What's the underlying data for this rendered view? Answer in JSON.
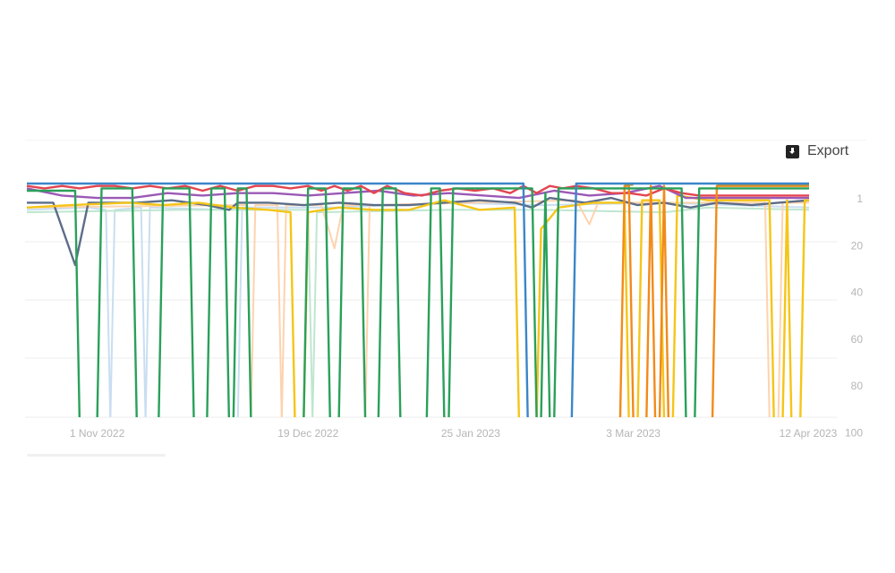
{
  "toolbar": {
    "export_label": "Export",
    "export_icon": "download-icon"
  },
  "chart_data": {
    "type": "line",
    "title": "",
    "xlabel": "",
    "ylabel": "",
    "y_reversed": true,
    "ylim": [
      1,
      100
    ],
    "grid": true,
    "y_axis_position": "right",
    "x_ticks": [
      "1 Nov 2022",
      "19 Dec 2022",
      "25 Jan 2023",
      "3 Mar 2023",
      "12 Apr 2023"
    ],
    "x_tick_dates": [
      "2022-11-01",
      "2022-12-19",
      "2023-01-25",
      "2023-03-03",
      "2023-04-12"
    ],
    "y_ticks": [
      1,
      20,
      40,
      60,
      80,
      100
    ],
    "xlim": [
      "2022-10-16",
      "2023-04-12"
    ],
    "series": [
      {
        "color": "#c9def1",
        "points": [
          [
            "2022-10-16",
            12
          ],
          [
            "2022-10-30",
            11
          ],
          [
            "2022-11-03",
            12
          ],
          [
            "2022-11-04",
            100
          ],
          [
            "2022-11-05",
            12
          ],
          [
            "2022-11-11",
            11
          ],
          [
            "2022-11-12",
            100
          ],
          [
            "2022-11-13",
            11
          ],
          [
            "2022-11-30",
            12
          ],
          [
            "2022-12-01",
            100
          ],
          [
            "2022-12-03",
            100
          ],
          [
            "2022-12-04",
            11
          ],
          [
            "2022-12-25",
            11
          ],
          [
            "2023-01-20",
            9
          ],
          [
            "2023-02-10",
            10
          ],
          [
            "2023-03-10",
            9
          ],
          [
            "2023-04-12",
            11
          ]
        ]
      },
      {
        "color": "#bfe6d0",
        "points": [
          [
            "2022-10-16",
            13
          ],
          [
            "2022-11-20",
            12
          ],
          [
            "2022-12-19",
            12
          ],
          [
            "2022-12-20",
            100
          ],
          [
            "2022-12-21",
            13
          ],
          [
            "2023-01-20",
            12
          ],
          [
            "2023-02-10",
            12
          ],
          [
            "2023-03-10",
            13
          ],
          [
            "2023-03-20",
            11
          ],
          [
            "2023-04-12",
            12
          ]
        ]
      },
      {
        "color": "#fdd3ae",
        "points": [
          [
            "2022-10-16",
            11
          ],
          [
            "2022-12-01",
            10
          ],
          [
            "2022-12-05",
            10
          ],
          [
            "2022-12-06",
            100
          ],
          [
            "2022-12-07",
            10
          ],
          [
            "2022-12-12",
            10
          ],
          [
            "2022-12-13",
            100
          ],
          [
            "2022-12-14",
            10
          ],
          [
            "2022-12-22",
            10
          ],
          [
            "2022-12-25",
            28
          ],
          [
            "2022-12-27",
            10
          ],
          [
            "2022-12-31",
            10
          ],
          [
            "2023-01-01",
            100
          ],
          [
            "2023-01-02",
            10
          ],
          [
            "2023-02-18",
            8
          ],
          [
            "2023-02-21",
            18
          ],
          [
            "2023-02-23",
            9
          ],
          [
            "2023-04-02",
            9
          ],
          [
            "2023-04-03",
            100
          ],
          [
            "2023-04-05",
            100
          ],
          [
            "2023-04-06",
            9
          ],
          [
            "2023-04-12",
            9
          ]
        ]
      },
      {
        "color": "#5d6d88",
        "points": [
          [
            "2022-10-16",
            9
          ],
          [
            "2022-10-22",
            9
          ],
          [
            "2022-10-27",
            35
          ],
          [
            "2022-10-30",
            9
          ],
          [
            "2022-11-10",
            9
          ],
          [
            "2022-11-18",
            8
          ],
          [
            "2022-11-26",
            10
          ],
          [
            "2022-12-01",
            12
          ],
          [
            "2022-12-03",
            9
          ],
          [
            "2022-12-10",
            9
          ],
          [
            "2022-12-18",
            10
          ],
          [
            "2022-12-26",
            9
          ],
          [
            "2023-01-03",
            10
          ],
          [
            "2023-01-11",
            10
          ],
          [
            "2023-01-19",
            9
          ],
          [
            "2023-01-27",
            8
          ],
          [
            "2023-02-04",
            9
          ],
          [
            "2023-02-08",
            11
          ],
          [
            "2023-02-12",
            7
          ],
          [
            "2023-02-20",
            9
          ],
          [
            "2023-02-26",
            7
          ],
          [
            "2023-03-04",
            10
          ],
          [
            "2023-03-10",
            9
          ],
          [
            "2023-03-16",
            11
          ],
          [
            "2023-03-22",
            9
          ],
          [
            "2023-03-30",
            10
          ],
          [
            "2023-04-05",
            9
          ],
          [
            "2023-04-12",
            8
          ]
        ]
      },
      {
        "color": "#f5c518",
        "points": [
          [
            "2022-10-16",
            11
          ],
          [
            "2022-10-26",
            10
          ],
          [
            "2022-11-08",
            9
          ],
          [
            "2022-11-16",
            10
          ],
          [
            "2022-11-24",
            9
          ],
          [
            "2022-12-02",
            11
          ],
          [
            "2022-12-10",
            12
          ],
          [
            "2022-12-15",
            13
          ],
          [
            "2022-12-16",
            100
          ],
          [
            "2022-12-18",
            100
          ],
          [
            "2022-12-19",
            13
          ],
          [
            "2022-12-26",
            11
          ],
          [
            "2023-01-03",
            12
          ],
          [
            "2023-01-11",
            12
          ],
          [
            "2023-01-19",
            8
          ],
          [
            "2023-01-27",
            12
          ],
          [
            "2023-02-04",
            11
          ],
          [
            "2023-02-05",
            100
          ],
          [
            "2023-02-09",
            100
          ],
          [
            "2023-02-10",
            20
          ],
          [
            "2023-02-14",
            11
          ],
          [
            "2023-02-22",
            9
          ],
          [
            "2023-03-01",
            9
          ],
          [
            "2023-03-02",
            100
          ],
          [
            "2023-03-04",
            100
          ],
          [
            "2023-03-05",
            8
          ],
          [
            "2023-03-09",
            8
          ],
          [
            "2023-03-10",
            100
          ],
          [
            "2023-03-12",
            100
          ],
          [
            "2023-03-13",
            6
          ],
          [
            "2023-03-20",
            8
          ],
          [
            "2023-04-03",
            8
          ],
          [
            "2023-04-04",
            100
          ],
          [
            "2023-04-06",
            100
          ],
          [
            "2023-04-07",
            8
          ],
          [
            "2023-04-08",
            100
          ],
          [
            "2023-04-10",
            100
          ],
          [
            "2023-04-11",
            8
          ],
          [
            "2023-04-12",
            8
          ]
        ]
      },
      {
        "color": "#9b59b6",
        "points": [
          [
            "2022-10-16",
            3
          ],
          [
            "2022-10-24",
            6
          ],
          [
            "2022-11-01",
            7
          ],
          [
            "2022-11-09",
            7
          ],
          [
            "2022-11-17",
            5
          ],
          [
            "2022-11-25",
            6
          ],
          [
            "2022-12-03",
            5
          ],
          [
            "2022-12-11",
            5
          ],
          [
            "2022-12-19",
            6
          ],
          [
            "2022-12-27",
            5
          ],
          [
            "2023-01-04",
            4
          ],
          [
            "2023-01-12",
            6
          ],
          [
            "2023-01-20",
            5
          ],
          [
            "2023-01-28",
            6
          ],
          [
            "2023-02-05",
            7
          ],
          [
            "2023-02-13",
            4
          ],
          [
            "2023-02-21",
            6
          ],
          [
            "2023-03-01",
            5
          ],
          [
            "2023-03-09",
            2
          ],
          [
            "2023-03-15",
            7
          ],
          [
            "2023-03-25",
            7
          ],
          [
            "2023-04-12",
            7
          ]
        ]
      },
      {
        "color": "#e34550",
        "points": [
          [
            "2022-10-16",
            2
          ],
          [
            "2022-10-20",
            3
          ],
          [
            "2022-10-24",
            2
          ],
          [
            "2022-10-28",
            3
          ],
          [
            "2022-11-01",
            2
          ],
          [
            "2022-11-05",
            2
          ],
          [
            "2022-11-09",
            3
          ],
          [
            "2022-11-13",
            2
          ],
          [
            "2022-11-17",
            3
          ],
          [
            "2022-11-21",
            2
          ],
          [
            "2022-11-25",
            4
          ],
          [
            "2022-11-29",
            2
          ],
          [
            "2022-12-03",
            4
          ],
          [
            "2022-12-07",
            2
          ],
          [
            "2022-12-11",
            2
          ],
          [
            "2022-12-15",
            3
          ],
          [
            "2022-12-19",
            2
          ],
          [
            "2022-12-22",
            4
          ],
          [
            "2022-12-25",
            2
          ],
          [
            "2022-12-28",
            4
          ],
          [
            "2022-12-31",
            2
          ],
          [
            "2023-01-03",
            5
          ],
          [
            "2023-01-06",
            2
          ],
          [
            "2023-01-10",
            5
          ],
          [
            "2023-01-14",
            6
          ],
          [
            "2023-01-18",
            4
          ],
          [
            "2023-01-22",
            3
          ],
          [
            "2023-01-26",
            4
          ],
          [
            "2023-01-30",
            3
          ],
          [
            "2023-02-03",
            5
          ],
          [
            "2023-02-06",
            2
          ],
          [
            "2023-02-09",
            5
          ],
          [
            "2023-02-12",
            2
          ],
          [
            "2023-02-15",
            3
          ],
          [
            "2023-02-18",
            2
          ],
          [
            "2023-02-22",
            3
          ],
          [
            "2023-02-26",
            5
          ],
          [
            "2023-03-02",
            5
          ],
          [
            "2023-03-06",
            6
          ],
          [
            "2023-03-10",
            3
          ],
          [
            "2023-03-14",
            5
          ],
          [
            "2023-03-18",
            6
          ],
          [
            "2023-03-25",
            6
          ],
          [
            "2023-04-01",
            6
          ],
          [
            "2023-04-12",
            6
          ]
        ]
      },
      {
        "color": "#f28a1a",
        "points": [
          [
            "2022-10-16",
            100
          ],
          [
            "2023-02-28",
            100
          ],
          [
            "2023-03-01",
            2
          ],
          [
            "2023-03-02",
            2
          ],
          [
            "2023-03-03",
            100
          ],
          [
            "2023-03-06",
            100
          ],
          [
            "2023-03-07",
            2
          ],
          [
            "2023-03-08",
            100
          ],
          [
            "2023-03-09",
            100
          ],
          [
            "2023-03-10",
            2
          ],
          [
            "2023-03-11",
            100
          ],
          [
            "2023-03-21",
            100
          ],
          [
            "2023-03-22",
            2
          ],
          [
            "2023-04-12",
            2
          ]
        ]
      },
      {
        "color": "#b8913a",
        "points": [
          [
            "2023-03-01",
            1.5
          ],
          [
            "2023-03-03",
            1.5
          ],
          [
            "2023-03-22",
            null
          ],
          [
            "2023-03-22",
            1.5
          ],
          [
            "2023-04-12",
            1.5
          ]
        ]
      },
      {
        "color": "#2aa05a",
        "points": [
          [
            "2022-10-16",
            4
          ],
          [
            "2022-10-27",
            4
          ],
          [
            "2022-10-28",
            100
          ],
          [
            "2022-11-01",
            100
          ],
          [
            "2022-11-02",
            3
          ],
          [
            "2022-11-09",
            3
          ],
          [
            "2022-11-10",
            100
          ],
          [
            "2022-11-15",
            100
          ],
          [
            "2022-11-16",
            3
          ],
          [
            "2022-11-22",
            3
          ],
          [
            "2022-11-23",
            100
          ],
          [
            "2022-11-26",
            100
          ],
          [
            "2022-11-27",
            3
          ],
          [
            "2022-11-30",
            3
          ],
          [
            "2022-12-01",
            100
          ],
          [
            "2022-12-02",
            100
          ],
          [
            "2022-12-03",
            3
          ],
          [
            "2022-12-05",
            3
          ],
          [
            "2022-12-06",
            100
          ],
          [
            "2022-12-18",
            100
          ],
          [
            "2022-12-19",
            3
          ],
          [
            "2022-12-23",
            3
          ],
          [
            "2022-12-24",
            100
          ],
          [
            "2022-12-26",
            100
          ],
          [
            "2022-12-27",
            3
          ],
          [
            "2022-12-31",
            3
          ],
          [
            "2023-01-01",
            100
          ],
          [
            "2023-01-04",
            100
          ],
          [
            "2023-01-05",
            3
          ],
          [
            "2023-01-08",
            3
          ],
          [
            "2023-01-09",
            100
          ],
          [
            "2023-01-15",
            100
          ],
          [
            "2023-01-16",
            3
          ],
          [
            "2023-01-18",
            3
          ],
          [
            "2023-01-19",
            100
          ],
          [
            "2023-01-20",
            100
          ],
          [
            "2023-01-21",
            3
          ],
          [
            "2023-02-08",
            3
          ],
          [
            "2023-02-09",
            100
          ],
          [
            "2023-02-10",
            100
          ],
          [
            "2023-02-11",
            5
          ],
          [
            "2023-02-12",
            100
          ],
          [
            "2023-02-13",
            100
          ],
          [
            "2023-02-14",
            3
          ],
          [
            "2023-03-14",
            3
          ],
          [
            "2023-03-15",
            100
          ],
          [
            "2023-03-17",
            100
          ],
          [
            "2023-03-18",
            3
          ],
          [
            "2023-04-12",
            3
          ]
        ]
      },
      {
        "color": "#3a86c8",
        "points": [
          [
            "2022-10-16",
            1
          ],
          [
            "2023-02-06",
            1
          ],
          [
            "2023-02-07",
            100
          ],
          [
            "2023-02-17",
            100
          ],
          [
            "2023-02-18",
            1
          ],
          [
            "2023-04-12",
            1
          ]
        ]
      }
    ]
  }
}
